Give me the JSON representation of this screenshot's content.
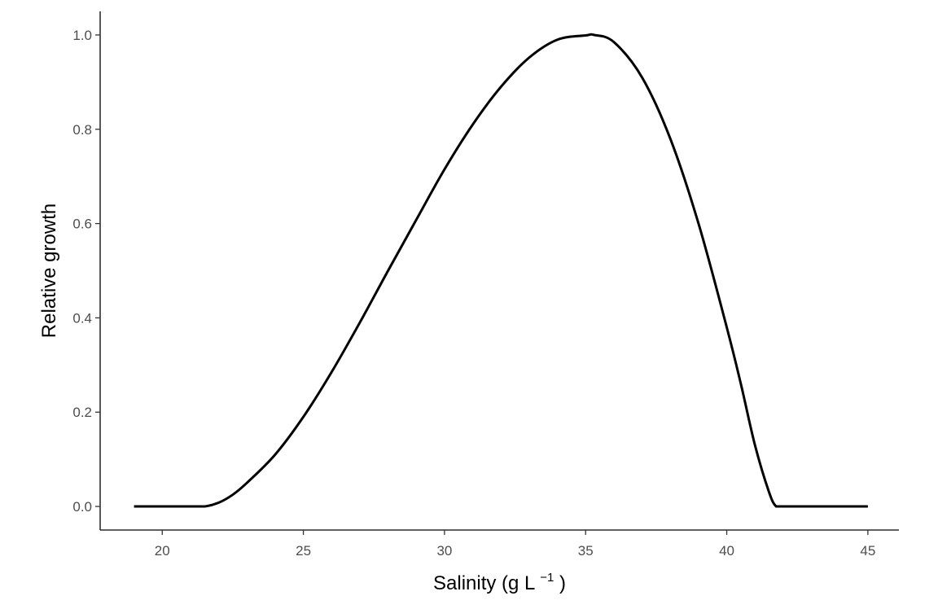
{
  "chart_data": {
    "type": "line",
    "xlabel": "Salinity (g L",
    "xlabel_superscript": "−1",
    "xlabel_suffix": ")",
    "ylabel": "Relative growth",
    "xlim": [
      17.8,
      46.1
    ],
    "ylim": [
      -0.05,
      1.05
    ],
    "x_ticks": [
      20,
      25,
      30,
      35,
      40,
      45
    ],
    "y_ticks": [
      0.0,
      0.2,
      0.4,
      0.6,
      0.8,
      1.0
    ],
    "x_tick_labels": [
      "20",
      "25",
      "30",
      "35",
      "40",
      "45"
    ],
    "y_tick_labels": [
      "0.0",
      "0.2",
      "0.4",
      "0.6",
      "0.8",
      "1.0"
    ],
    "grid": false,
    "legend": "none",
    "series": [
      {
        "color": "#000000",
        "x": [
          19,
          20,
          21,
          21.5,
          22,
          22.5,
          23,
          24,
          25,
          26,
          27,
          28,
          29,
          30,
          31,
          32,
          33,
          34,
          35,
          35.3,
          36,
          37,
          38,
          39,
          40,
          40.5,
          41,
          41.5,
          41.75,
          42,
          43,
          44,
          45
        ],
        "y": [
          0.0,
          0.0,
          0.0,
          0.0,
          0.008,
          0.025,
          0.05,
          0.11,
          0.19,
          0.285,
          0.39,
          0.5,
          0.608,
          0.715,
          0.81,
          0.89,
          0.952,
          0.99,
          0.999,
          1.0,
          0.985,
          0.91,
          0.78,
          0.6,
          0.38,
          0.26,
          0.13,
          0.03,
          0.0,
          0.0,
          0.0,
          0.0,
          0.0
        ]
      }
    ]
  }
}
